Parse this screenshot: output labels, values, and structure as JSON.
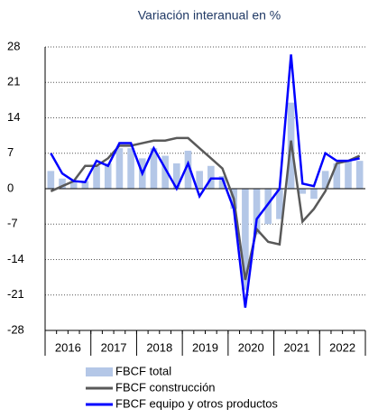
{
  "chart_data": {
    "type": "bar-line",
    "title": "Variación interanual en %",
    "categories": [
      null,
      null,
      null,
      null,
      null,
      null,
      null,
      null,
      null,
      null,
      null,
      null,
      null,
      null,
      null,
      null,
      null,
      null,
      null,
      null,
      null,
      null,
      null,
      null,
      null,
      null,
      null,
      null
    ],
    "groups": [
      "2016",
      "2017",
      "2018",
      "2019",
      "2020",
      "2021",
      "2022"
    ],
    "series": [
      {
        "name": "FBCF total",
        "kind": "bar",
        "color": "#b4c7e7",
        "values": [
          3.5,
          2,
          1.5,
          1.5,
          4.5,
          5,
          8,
          8,
          6,
          8,
          6.5,
          5,
          7.5,
          3.5,
          4.5,
          2.5,
          -4,
          -20,
          -9,
          -7,
          -6,
          17,
          -1,
          -2,
          3.5,
          5,
          5.5,
          5.5
        ]
      },
      {
        "name": "FBCF construcción",
        "kind": "line",
        "color": "#595959",
        "values": [
          -0.5,
          0.5,
          1.5,
          4.5,
          4.5,
          6,
          8.5,
          8.5,
          9,
          9.5,
          9.5,
          10,
          10,
          8,
          6,
          4,
          -2,
          -18,
          -8,
          -10.5,
          -11,
          9.5,
          -6.5,
          -4,
          -0.5,
          5,
          5.5,
          6.5
        ]
      },
      {
        "name": "FBCF equipo y otros productos",
        "kind": "line",
        "color": "#0000ff",
        "values": [
          7,
          3,
          1.5,
          1.3,
          5.5,
          4.5,
          9,
          9,
          3,
          8,
          4,
          0,
          5,
          -1.5,
          2,
          2,
          -4,
          -23.5,
          -6,
          -3,
          0,
          26.5,
          1,
          0.5,
          7,
          5.5,
          5.5,
          6
        ]
      }
    ],
    "ylim": [
      -28,
      28
    ],
    "yticks": [
      -28,
      -21,
      -14,
      -7,
      0,
      7,
      14,
      21,
      28
    ],
    "grid": true
  }
}
